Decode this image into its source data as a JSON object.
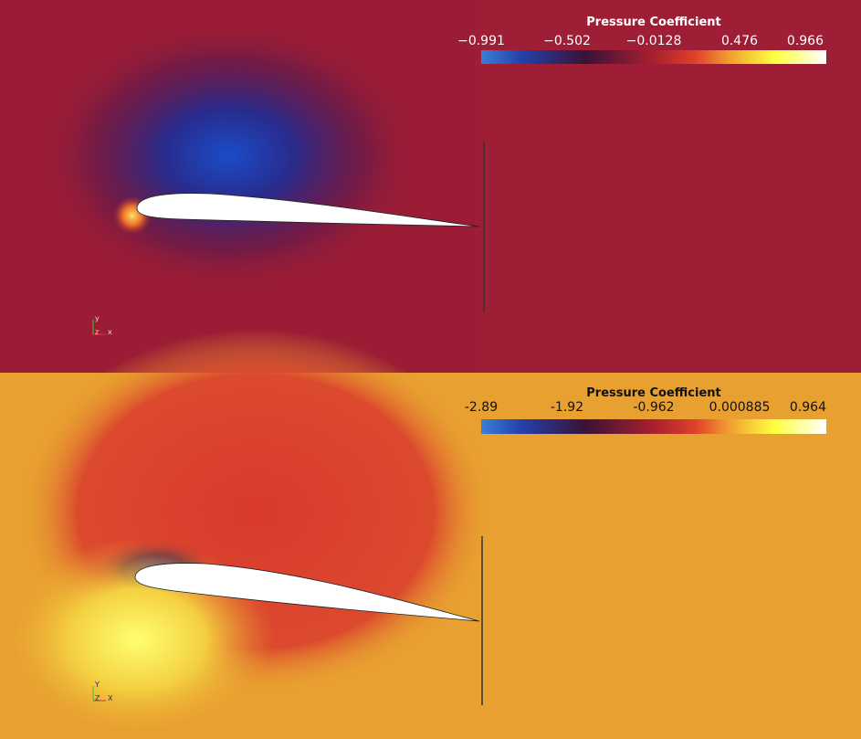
{
  "panels": [
    {
      "colorbar": {
        "title": "Pressure Coefficient",
        "ticks": [
          "−0.991",
          "−0.502",
          "−0.0128",
          "0.476",
          "0.966"
        ]
      },
      "axes": {
        "y": "y",
        "z": "z",
        "x": "x"
      }
    },
    {
      "colorbar": {
        "title": "Pressure Coefficient",
        "ticks": [
          "-2.89",
          "-1.92",
          "-0.962",
          "0.000885",
          "0.964"
        ]
      },
      "axes": {
        "y": "Y",
        "z": "Z",
        "x": "X"
      }
    }
  ]
}
